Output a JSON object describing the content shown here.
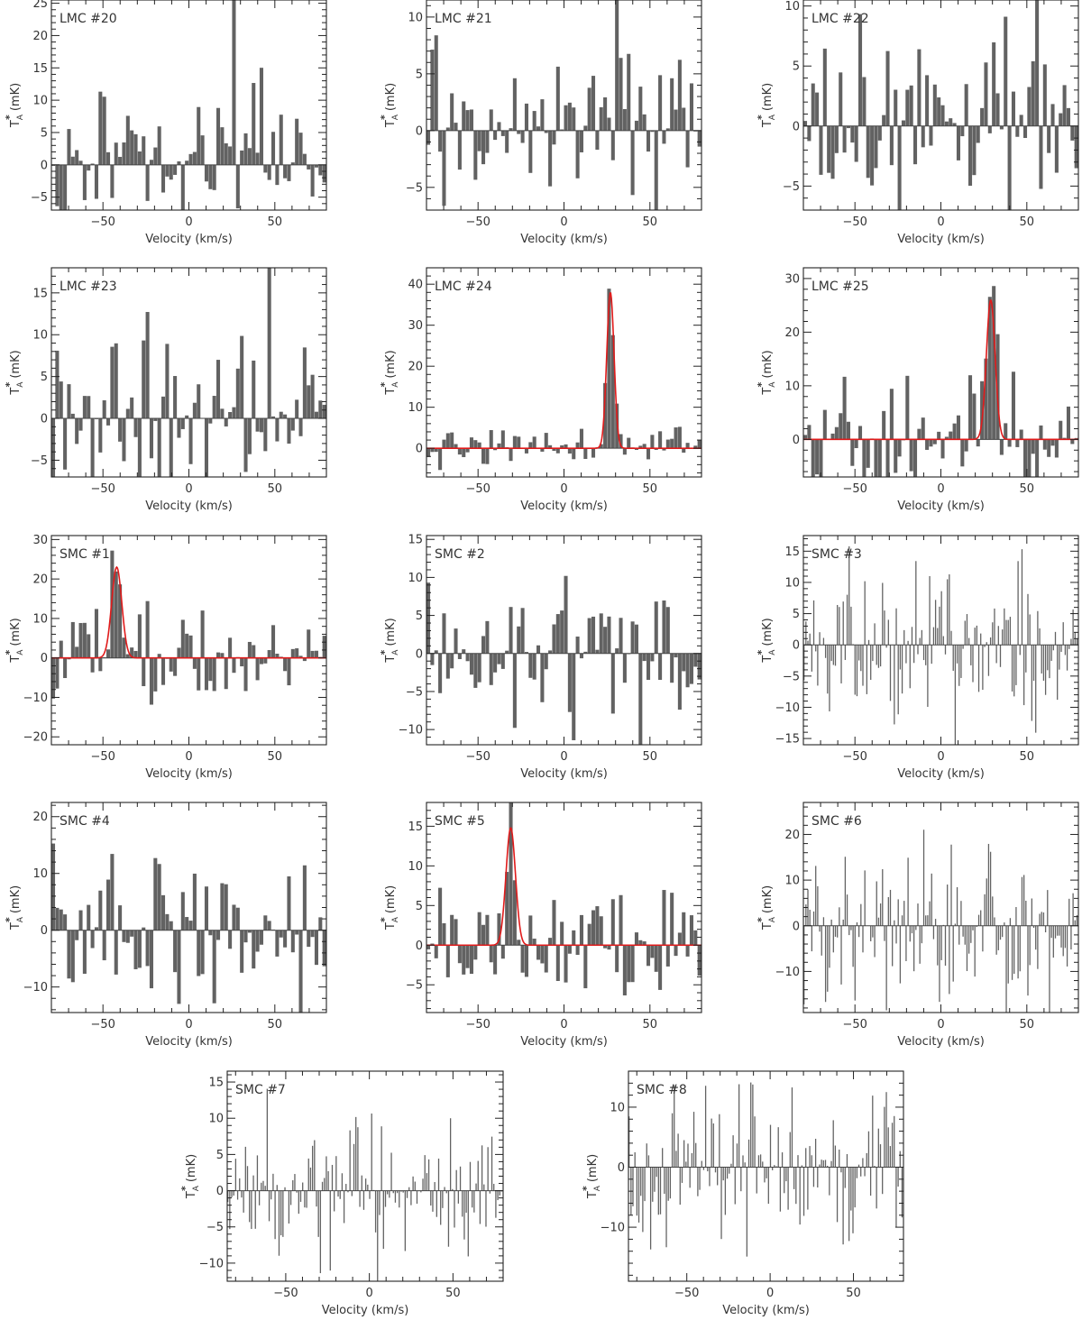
{
  "figure": {
    "xlabel": "Velocity (km/s)",
    "ylabel_main": "T",
    "ylabel_sub": "A",
    "ylabel_sup": "*",
    "ylabel_unit": " (mK)"
  },
  "chart_data": [
    {
      "type": "bar",
      "title": "LMC  #20",
      "xlabel": "Velocity (km/s)",
      "ylabel": "TA* (mK)",
      "xlim": [
        -80,
        80
      ],
      "ylim": [
        -7,
        25.5
      ],
      "xticks": [
        -50,
        0,
        50
      ],
      "yticks": [
        -5,
        0,
        5,
        10,
        15,
        20,
        25
      ],
      "nbins": 70,
      "seed": 20,
      "sigma": 6,
      "peaks": [
        {
          "index": 46,
          "value": 25.5
        }
      ],
      "fit": null
    },
    {
      "type": "bar",
      "title": "LMC  #21",
      "xlabel": "Velocity (km/s)",
      "ylabel": "TA* (mK)",
      "xlim": [
        -80,
        80
      ],
      "ylim": [
        -7,
        11.5
      ],
      "xticks": [
        -50,
        0,
        50
      ],
      "yticks": [
        -5,
        0,
        5,
        10
      ],
      "nbins": 70,
      "seed": 21,
      "sigma": 3.6,
      "peaks": [
        {
          "index": 48,
          "value": 11.5
        }
      ],
      "fit": null
    },
    {
      "type": "bar",
      "title": "LMC  #22",
      "xlabel": "Velocity (km/s)",
      "ylabel": "TA* (mK)",
      "xlim": [
        -80,
        80
      ],
      "ylim": [
        -7,
        10.5
      ],
      "xticks": [
        -50,
        0,
        50
      ],
      "yticks": [
        -5,
        0,
        5,
        10
      ],
      "nbins": 70,
      "seed": 22,
      "sigma": 3.5,
      "peaks": [
        {
          "index": 59,
          "value": 10.5
        }
      ],
      "fit": null
    },
    {
      "type": "bar",
      "title": "LMC  #23",
      "xlabel": "Velocity (km/s)",
      "ylabel": "TA* (mK)",
      "xlim": [
        -80,
        80
      ],
      "ylim": [
        -7,
        18
      ],
      "xticks": [
        -50,
        0,
        50
      ],
      "yticks": [
        -5,
        0,
        5,
        10,
        15
      ],
      "nbins": 70,
      "seed": 23,
      "sigma": 5,
      "peaks": [
        {
          "index": 55,
          "value": 18
        }
      ],
      "fit": null
    },
    {
      "type": "bar",
      "title": "LMC  #24",
      "xlabel": "Velocity (km/s)",
      "ylabel": "TA* (mK)",
      "xlim": [
        -80,
        80
      ],
      "ylim": [
        -7,
        44
      ],
      "xticks": [
        -50,
        0,
        50
      ],
      "yticks": [
        0,
        10,
        20,
        30,
        40
      ],
      "nbins": 70,
      "seed": 24,
      "sigma": 2.8,
      "peaks": [],
      "fit": {
        "amplitude": 38,
        "center": 27,
        "fwhm": 5
      }
    },
    {
      "type": "bar",
      "title": "LMC  #25",
      "xlabel": "Velocity (km/s)",
      "ylabel": "TA* (mK)",
      "xlim": [
        -80,
        80
      ],
      "ylim": [
        -7,
        32
      ],
      "xticks": [
        -50,
        0,
        50
      ],
      "yticks": [
        0,
        10,
        20,
        30
      ],
      "nbins": 70,
      "seed": 25,
      "sigma": 5.5,
      "peaks": [],
      "fit": {
        "amplitude": 26,
        "center": 29,
        "fwhm": 6
      }
    },
    {
      "type": "bar",
      "title": "SMC  #1",
      "xlabel": "Velocity (km/s)",
      "ylabel": "TA* (mK)",
      "xlim": [
        -80,
        80
      ],
      "ylim": [
        -22,
        31
      ],
      "xticks": [
        -50,
        0,
        50
      ],
      "yticks": [
        -20,
        -10,
        0,
        10,
        20,
        30
      ],
      "nbins": 70,
      "seed": 31,
      "sigma": 6,
      "peaks": [],
      "fit": {
        "amplitude": 23,
        "center": -42,
        "fwhm": 7
      }
    },
    {
      "type": "bar",
      "title": "SMC  #2",
      "xlabel": "Velocity (km/s)",
      "ylabel": "TA* (mK)",
      "xlim": [
        -80,
        80
      ],
      "ylim": [
        -12,
        15.5
      ],
      "xticks": [
        -50,
        0,
        50
      ],
      "yticks": [
        -10,
        -5,
        0,
        5,
        10,
        15
      ],
      "nbins": 70,
      "seed": 32,
      "sigma": 5,
      "peaks": [],
      "fit": null
    },
    {
      "type": "bar",
      "title": "SMC  #3",
      "xlabel": "Velocity (km/s)",
      "ylabel": "TA* (mK)",
      "xlim": [
        -80,
        80
      ],
      "ylim": [
        -16,
        17.5
      ],
      "xticks": [
        -50,
        0,
        50
      ],
      "yticks": [
        -15,
        -10,
        -5,
        0,
        5,
        10,
        15
      ],
      "nbins": 140,
      "seed": 33,
      "sigma": 6.5,
      "peaks": [],
      "fit": null
    },
    {
      "type": "bar",
      "title": "SMC  #4",
      "xlabel": "Velocity (km/s)",
      "ylabel": "TA* (mK)",
      "xlim": [
        -80,
        80
      ],
      "ylim": [
        -14.5,
        22.5
      ],
      "xticks": [
        -50,
        0,
        50
      ],
      "yticks": [
        -10,
        0,
        10,
        20
      ],
      "nbins": 70,
      "seed": 34,
      "sigma": 7,
      "peaks": [],
      "fit": null
    },
    {
      "type": "bar",
      "title": "SMC  #5",
      "xlabel": "Velocity (km/s)",
      "ylabel": "TA* (mK)",
      "xlim": [
        -80,
        80
      ],
      "ylim": [
        -8.5,
        18
      ],
      "xticks": [
        -50,
        0,
        50
      ],
      "yticks": [
        -5,
        0,
        5,
        10,
        15
      ],
      "nbins": 70,
      "seed": 35,
      "sigma": 3.5,
      "peaks": [],
      "fit": {
        "amplitude": 14.8,
        "center": -31,
        "fwhm": 6.5
      }
    },
    {
      "type": "bar",
      "title": "SMC  #6",
      "xlabel": "Velocity (km/s)",
      "ylabel": "TA* (mK)",
      "xlim": [
        -80,
        80
      ],
      "ylim": [
        -19,
        27
      ],
      "xticks": [
        -50,
        0,
        50
      ],
      "yticks": [
        -10,
        0,
        10,
        20
      ],
      "nbins": 140,
      "seed": 36,
      "sigma": 8,
      "peaks": [],
      "fit": null
    },
    {
      "type": "bar",
      "title": "SMC  #7",
      "xlabel": "Velocity (km/s)",
      "ylabel": "TA* (mK)",
      "xlim": [
        -85,
        80
      ],
      "ylim": [
        -12.5,
        16.5
      ],
      "xticks": [
        -50,
        0,
        50
      ],
      "yticks": [
        -10,
        -5,
        0,
        5,
        10,
        15
      ],
      "nbins": 140,
      "seed": 37,
      "sigma": 5,
      "peaks": [],
      "fit": null
    },
    {
      "type": "bar",
      "title": "SMC  #8",
      "xlabel": "Velocity (km/s)",
      "ylabel": "TA* (mK)",
      "xlim": [
        -85,
        80
      ],
      "ylim": [
        -19,
        16
      ],
      "xticks": [
        -50,
        0,
        50
      ],
      "yticks": [
        -10,
        0,
        10
      ],
      "nbins": 140,
      "seed": 38,
      "sigma": 6,
      "peaks": [],
      "fit": null
    }
  ]
}
